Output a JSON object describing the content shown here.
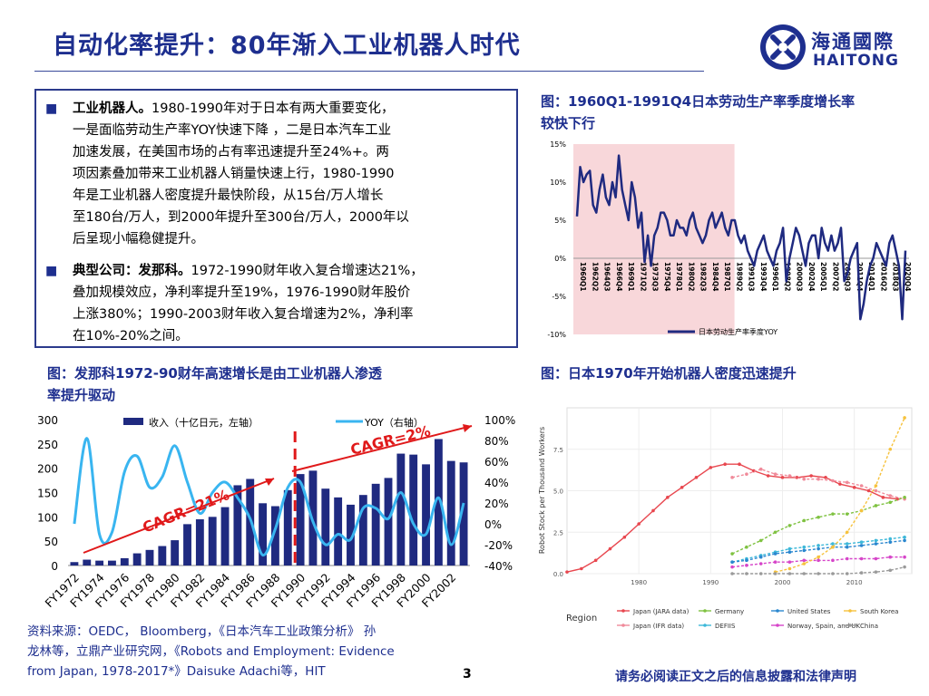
{
  "header": {
    "title": "自动化率提升：80年渐入工业机器人时代",
    "logo_cn": "海通國際",
    "logo_en": "HAITONG"
  },
  "textbox": {
    "bullet1_head": "工业机器人。",
    "bullet1_lines": [
      "1980-1990年对于日本有两大重要变化，",
      "一是面临劳动生产率YOY快速下降 ，二是日本汽车工业",
      "加速发展，在美国市场的占有率迅速提升至24%+。两",
      "项因素叠加带来工业机器人销量快速上行，1980-1990",
      "年是工业机器人密度提升最快阶段，从15台/万人增长",
      "至180台/万人，到2000年提升至300台/万人，2000年以",
      "后呈现小幅稳健提升。"
    ],
    "bullet2_head": "典型公司：发那科。",
    "bullet2_lines": [
      "1972-1990财年收入复合增速达21%，",
      "叠加规模效应，净利率提升至19%，1976-1990财年股价",
      "上涨380%；1990-2003财年收入复合增速为2%，净利率",
      "在10%-20%之间。"
    ]
  },
  "fig1": {
    "title_line1": "图：1960Q1-1991Q4日本劳动生产率季度增长率",
    "title_line2": "较快下行"
  },
  "fig2": {
    "title_line1": "图：发那科1972-90财年高速增长是由工业机器人渗透",
    "title_line2": "率提升驱动"
  },
  "fig3": {
    "title": "图：日本1970年开始机器人密度迅速提升"
  },
  "chart_data": [
    {
      "type": "line",
      "series": [
        {
          "name": "日本劳动生产率季度YOY",
          "color": "#1f2a80"
        }
      ],
      "ytick_labels": [
        "15%",
        "10%",
        "5%",
        "0%",
        "-5%",
        "-10%"
      ],
      "ylim": [
        -10,
        15
      ],
      "x_tick_labels": [
        "1960Q1",
        "1962Q2",
        "1964Q3",
        "1966Q4",
        "1969Q1",
        "1971Q2",
        "1973Q3",
        "1975Q4",
        "1978Q1",
        "1980Q2",
        "1982Q3",
        "1984Q4",
        "1987Q1",
        "1989Q2",
        "1991Q3",
        "1993Q4",
        "1996Q1",
        "1998Q2",
        "2000Q3",
        "2002Q4",
        "2005Q1",
        "2007Q2",
        "2009Q3",
        "2011Q4",
        "2014Q1",
        "2016Q2",
        "2018Q3",
        "2020Q4"
      ],
      "values": [
        5.5,
        12,
        10,
        11,
        11.5,
        7,
        6,
        9,
        11,
        8,
        7,
        10,
        8,
        13.5,
        9,
        7,
        5,
        10,
        8,
        4,
        6,
        -0.5,
        3,
        -1,
        3,
        4,
        6,
        6,
        5,
        3,
        3,
        5,
        4,
        4,
        3,
        5,
        6,
        4,
        3,
        2,
        3,
        5,
        6,
        4,
        5,
        6,
        4,
        3,
        5,
        5,
        3,
        2,
        3,
        1,
        0,
        -1,
        1,
        2,
        3,
        1,
        0,
        -1,
        1,
        2,
        4,
        -3,
        0,
        2,
        4,
        3,
        1,
        -1,
        2,
        3,
        3,
        0,
        4,
        2,
        1,
        3,
        1,
        2,
        4,
        -3,
        -2,
        0,
        1,
        2,
        -8,
        -6,
        -3,
        -1,
        0,
        2,
        1,
        0,
        -1,
        2,
        3,
        1,
        -1,
        -8,
        1
      ],
      "shaded_range": [
        "1960Q1",
        "1991Q4"
      ]
    },
    {
      "type": "bar",
      "categories": [
        "FY1972",
        "FY1973",
        "FY1974",
        "FY1975",
        "FY1976",
        "FY1977",
        "FY1978",
        "FY1979",
        "FY1980",
        "FY1981",
        "FY1982",
        "FY1983",
        "FY1984",
        "FY1985",
        "FY1986",
        "FY1987",
        "FY1988",
        "FY1989",
        "FY1990",
        "FY1991",
        "FY1992",
        "FY1993",
        "FY1994",
        "FY1995",
        "FY1996",
        "FY1997",
        "FY1998",
        "FY1999",
        "FY2000",
        "FY2001",
        "FY2002",
        "FY2003"
      ],
      "x_tick_labels": [
        "FY1972",
        "FY1974",
        "FY1976",
        "FY1978",
        "FY1980",
        "FY1982",
        "FY1984",
        "FY1986",
        "FY1988",
        "FY1990",
        "FY1992",
        "FY1994",
        "FY1996",
        "FY1998",
        "FY2000",
        "FY2002"
      ],
      "series": [
        {
          "name": "收入（十亿日元，左轴）",
          "type": "bar",
          "color": "#1f2a80",
          "values": [
            7,
            12,
            10,
            10,
            15,
            25,
            32,
            40,
            52,
            85,
            95,
            100,
            120,
            165,
            178,
            128,
            122,
            155,
            188,
            195,
            158,
            140,
            125,
            145,
            168,
            180,
            230,
            228,
            208,
            260,
            215,
            212
          ]
        },
        {
          "name": "YOY（右轴）",
          "type": "line",
          "axis": "right",
          "color": "#39b5f0",
          "values": [
            0,
            82,
            -10,
            -8,
            50,
            65,
            35,
            45,
            75,
            40,
            10,
            30,
            40,
            25,
            5,
            -30,
            -5,
            35,
            40,
            2,
            -20,
            -10,
            -15,
            15,
            15,
            5,
            30,
            0,
            -10,
            25,
            -20,
            20
          ]
        }
      ],
      "ylim": [
        0,
        300
      ],
      "ytick_labels": [
        "300",
        "250",
        "200",
        "150",
        "100",
        "50",
        "0"
      ],
      "y2lim": [
        -40,
        100
      ],
      "y2tick_labels": [
        "100%",
        "80%",
        "60%",
        "40%",
        "20%",
        "0%",
        "-20%",
        "-40%"
      ],
      "annotations": [
        "CAGR=21%",
        "CAGR=2%"
      ],
      "annotation_color": "#e0191a",
      "divider_at": "FY1990"
    },
    {
      "type": "line",
      "ylabel": "Robot Stock per Thousand Workers",
      "xlim": [
        1970,
        2018
      ],
      "x_tick_labels": [
        "1980",
        "1990",
        "2000",
        "2010"
      ],
      "ylim": [
        0,
        10
      ],
      "ytick_labels": [
        "0.0",
        "2.5",
        "5.0",
        "7.5"
      ],
      "legend_title": "Region",
      "legend_placement": "bottom",
      "series": [
        {
          "name": "Japan (JARA data)",
          "color": "#e8474f",
          "x": [
            1970,
            1972,
            1974,
            1976,
            1978,
            1980,
            1982,
            1984,
            1986,
            1988,
            1990,
            1992,
            1994,
            1996,
            1998,
            2000,
            2002,
            2004,
            2006,
            2008,
            2010,
            2012,
            2014,
            2016
          ],
          "y": [
            0.1,
            0.3,
            0.8,
            1.5,
            2.2,
            3.0,
            3.8,
            4.6,
            5.2,
            5.8,
            6.4,
            6.6,
            6.6,
            6.2,
            5.9,
            5.8,
            5.8,
            5.9,
            5.8,
            5.4,
            5.2,
            5.0,
            4.6,
            4.5
          ]
        },
        {
          "name": "Japan (IFR data)",
          "color": "#f08a9a",
          "x": [
            1993,
            1995,
            1997,
            1999,
            2001,
            2003,
            2005,
            2007,
            2009,
            2011,
            2013,
            2015,
            2017
          ],
          "y": [
            5.8,
            6.0,
            6.3,
            6.0,
            5.9,
            5.7,
            5.7,
            5.6,
            5.5,
            5.3,
            5.0,
            4.7,
            4.5
          ]
        },
        {
          "name": "Germany",
          "color": "#7fc241",
          "x": [
            1993,
            1995,
            1997,
            1999,
            2001,
            2003,
            2005,
            2007,
            2009,
            2011,
            2013,
            2015,
            2017
          ],
          "y": [
            1.2,
            1.6,
            2.0,
            2.5,
            2.9,
            3.2,
            3.4,
            3.6,
            3.6,
            3.8,
            4.1,
            4.3,
            4.6
          ]
        },
        {
          "name": "DEFIIS",
          "color": "#3db8d9",
          "x": [
            1993,
            1995,
            1997,
            1999,
            2001,
            2003,
            2005,
            2007,
            2009,
            2011,
            2013,
            2015,
            2017
          ],
          "y": [
            0.7,
            0.9,
            1.1,
            1.3,
            1.5,
            1.6,
            1.7,
            1.8,
            1.8,
            1.9,
            2.0,
            2.1,
            2.2
          ]
        },
        {
          "name": "United States",
          "color": "#2a87cf",
          "x": [
            1993,
            1995,
            1997,
            1999,
            2001,
            2003,
            2005,
            2007,
            2009,
            2011,
            2013,
            2015,
            2017
          ],
          "y": [
            0.7,
            0.8,
            1.0,
            1.2,
            1.3,
            1.4,
            1.5,
            1.6,
            1.6,
            1.7,
            1.8,
            1.9,
            2.0
          ]
        },
        {
          "name": "Norway, Spain, and UK",
          "color": "#d645c9",
          "x": [
            1993,
            1995,
            1997,
            1999,
            2001,
            2003,
            2005,
            2007,
            2009,
            2011,
            2013,
            2015,
            2017
          ],
          "y": [
            0.4,
            0.5,
            0.6,
            0.7,
            0.7,
            0.8,
            0.8,
            0.8,
            0.9,
            0.9,
            0.9,
            1.0,
            1.0
          ]
        },
        {
          "name": "South Korea",
          "color": "#f6c23d",
          "x": [
            1999,
            2001,
            2003,
            2005,
            2007,
            2009,
            2011,
            2013,
            2015,
            2017
          ],
          "y": [
            0.1,
            0.3,
            0.6,
            1.0,
            1.6,
            2.5,
            3.8,
            5.3,
            7.5,
            9.4
          ]
        },
        {
          "name": "China",
          "color": "#9a9a9a",
          "x": [
            1993,
            1995,
            1997,
            1999,
            2001,
            2003,
            2005,
            2007,
            2009,
            2011,
            2013,
            2015,
            2017
          ],
          "y": [
            0,
            0,
            0,
            0,
            0,
            0,
            0,
            0,
            0,
            0.05,
            0.1,
            0.2,
            0.4
          ]
        }
      ]
    }
  ],
  "footer": {
    "source_lines": [
      "资料来源：OEDC， Bloomberg，《日本汽车工业政策分析》 孙",
      "龙林等，立鼎产业研究网，《Robots and Employment: Evidence",
      "from Japan, 1978-2017*》Daisuke Adachi等，HIT"
    ],
    "page_number": "3",
    "disclaimer": "请务必阅读正文之后的信息披露和法律声明"
  }
}
